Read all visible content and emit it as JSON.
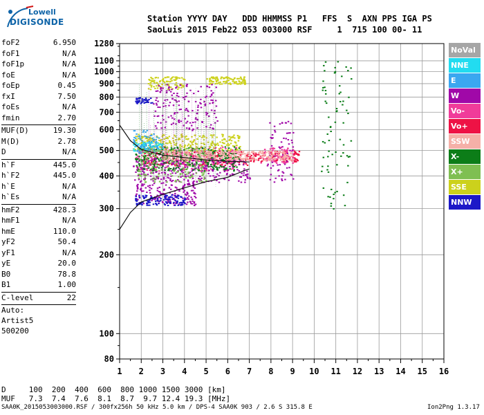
{
  "logo": {
    "line1": "Lowell",
    "line2": "DIGISONDE"
  },
  "header": {
    "line1": "Station YYYY DAY   DDD HHMMSS P1   FFS  S  AXN PPS IGA PS",
    "line2": "SaoLuis 2015 Feb22 053 003000 RSF     1  715 100 00- 11"
  },
  "params": [
    {
      "name": "foF2",
      "value": "6.950"
    },
    {
      "name": "foF1",
      "value": "N/A"
    },
    {
      "name": "foF1p",
      "value": "N/A"
    },
    {
      "name": "foE",
      "value": "N/A"
    },
    {
      "name": "foEp",
      "value": "0.45"
    },
    {
      "name": "fxI",
      "value": "7.50"
    },
    {
      "name": "foEs",
      "value": "N/A"
    },
    {
      "name": "fmin",
      "value": "2.70"
    },
    {
      "sep": true
    },
    {
      "name": "MUF(D)",
      "value": "19.30"
    },
    {
      "name": "M(D)",
      "value": "2.78"
    },
    {
      "name": "D",
      "value": "N/A"
    },
    {
      "sep": true
    },
    {
      "name": "h`F",
      "value": "445.0"
    },
    {
      "name": "h`F2",
      "value": "445.0"
    },
    {
      "name": "h`E",
      "value": "N/A"
    },
    {
      "name": "h`Es",
      "value": "N/A"
    },
    {
      "sep": true
    },
    {
      "name": "hmF2",
      "value": "428.3"
    },
    {
      "name": "hmF1",
      "value": "N/A"
    },
    {
      "name": "hmE",
      "value": "110.0"
    },
    {
      "name": "yF2",
      "value": "50.4"
    },
    {
      "name": "yF1",
      "value": "N/A"
    },
    {
      "name": "yE",
      "value": "20.0"
    },
    {
      "name": "B0",
      "value": "78.8"
    },
    {
      "name": "B1",
      "value": "1.00"
    },
    {
      "sep": true
    },
    {
      "name": "C-level",
      "value": "22"
    },
    {
      "sep": true
    },
    {
      "text": "Auto:"
    },
    {
      "text": "Artist5"
    },
    {
      "text": "500200"
    }
  ],
  "legend": [
    {
      "label": "NoVal",
      "color": "#a6a6a6"
    },
    {
      "label": "NNE",
      "color": "#22dcf0"
    },
    {
      "label": "E",
      "color": "#3aa7f0"
    },
    {
      "label": "W",
      "color": "#a008a8"
    },
    {
      "label": "Vo-",
      "color": "#f03c9a"
    },
    {
      "label": "Vo+",
      "color": "#ee1245"
    },
    {
      "label": "SSW",
      "color": "#f5b0a8"
    },
    {
      "label": "X-",
      "color": "#0c7d18"
    },
    {
      "label": "X+",
      "color": "#7fbf52"
    },
    {
      "label": "SSE",
      "color": "#ccd11c"
    },
    {
      "label": "NNW",
      "color": "#1c18c8"
    }
  ],
  "bottom": {
    "line1": "D     100  200  400  600  800 1000 1500 3000 [km]",
    "line2": "MUF   7.3  7.4  7.6  8.1  8.7  9.7 12.4 19.3 [MHz]"
  },
  "footer": {
    "left": "SAA0K_2015053003000.RSF / 300fx256h 50 kHz 5.0 km / DPS-4 SAA0K 903 / 2.6 S 315.8 E",
    "right": "Ion2Png 1.3.17"
  },
  "chart_data": {
    "type": "scatter",
    "title": "",
    "xlabel": "",
    "ylabel": "",
    "xlim": [
      1,
      16
    ],
    "ylim": [
      80,
      1280
    ],
    "y_scale": "log",
    "x_ticks": [
      "1",
      "2",
      "3",
      "4",
      "5",
      "6",
      "7",
      "8",
      "9",
      "10",
      "11",
      "12",
      "13",
      "14",
      "15",
      "16"
    ],
    "y_ticks": [
      "80",
      "100",
      "200",
      "300",
      "400",
      "500",
      "600",
      "700",
      "800",
      "900",
      "1000",
      "1100",
      "1280"
    ],
    "grid": true,
    "series": [
      {
        "name": "Vo+",
        "color": "#ee1245",
        "clusters": [
          {
            "x": [
              2.0,
              7.0
            ],
            "y": [
              440,
              500
            ]
          },
          {
            "x": [
              7.0,
              9.3
            ],
            "y": [
              455,
              500
            ]
          }
        ]
      },
      {
        "name": "Vo-",
        "color": "#f03c9a",
        "clusters": [
          {
            "x": [
              1.7,
              6.5
            ],
            "y": [
              420,
              520
            ]
          },
          {
            "x": [
              7.5,
              9.0
            ],
            "y": [
              450,
              520
            ]
          }
        ]
      },
      {
        "name": "SSE",
        "color": "#ccd11c",
        "clusters": [
          {
            "x": [
              1.6,
              6.6
            ],
            "y": [
              500,
              580
            ]
          },
          {
            "x": [
              2.3,
              4.0
            ],
            "y": [
              860,
              960
            ]
          },
          {
            "x": [
              5.0,
              6.8
            ],
            "y": [
              900,
              960
            ]
          }
        ]
      },
      {
        "name": "W",
        "color": "#a008a8",
        "clusters": [
          {
            "x": [
              1.7,
              4.5
            ],
            "y": [
              310,
              380
            ]
          },
          {
            "x": [
              1.6,
              7.0
            ],
            "y": [
              380,
              470
            ]
          },
          {
            "x": [
              7.8,
              9.0
            ],
            "y": [
              380,
              650
            ]
          },
          {
            "x": [
              2.5,
              5.5
            ],
            "y": [
              600,
              900
            ]
          }
        ]
      },
      {
        "name": "NNW",
        "color": "#1c18c8",
        "clusters": [
          {
            "x": [
              1.7,
              2.5
            ],
            "y": [
              760,
              800
            ]
          },
          {
            "x": [
              1.7,
              4.0
            ],
            "y": [
              310,
              340
            ]
          }
        ]
      },
      {
        "name": "X-",
        "color": "#0c7d18",
        "clusters": [
          {
            "x": [
              1.7,
              6.5
            ],
            "y": [
              420,
              520
            ]
          },
          {
            "x": [
              10.3,
              11.7
            ],
            "y": [
              300,
              1100
            ]
          }
        ]
      },
      {
        "name": "NNE",
        "color": "#22dcf0",
        "clusters": [
          {
            "x": [
              1.6,
              3.0
            ],
            "y": [
              500,
              540
            ]
          }
        ]
      },
      {
        "name": "E",
        "color": "#3aa7f0",
        "clusters": [
          {
            "x": [
              1.6,
              2.8
            ],
            "y": [
              490,
              600
            ]
          }
        ]
      },
      {
        "name": "SSW",
        "color": "#f5b0a8",
        "clusters": [
          {
            "x": [
              3.0,
              9.0
            ],
            "y": [
              460,
              500
            ]
          }
        ]
      },
      {
        "name": "X+",
        "color": "#7fbf52",
        "clusters": [
          {
            "x": [
              1.8,
              5.0
            ],
            "y": [
              380,
              520
            ]
          }
        ]
      }
    ],
    "profile_lines": [
      {
        "name": "",
        "color": "#111111",
        "points": [
          [
            1,
            250
          ],
          [
            1.5,
            290
          ],
          [
            2,
            318
          ],
          [
            3,
            340
          ],
          [
            4,
            360
          ],
          [
            5,
            380
          ],
          [
            6,
            395
          ],
          [
            6.8,
            420
          ],
          [
            7.0,
            425
          ]
        ]
      },
      {
        "name": "",
        "color": "#111111",
        "points": [
          [
            1,
            625
          ],
          [
            1.5,
            545
          ],
          [
            2,
            505
          ],
          [
            3,
            480
          ],
          [
            4,
            470
          ],
          [
            5,
            460
          ],
          [
            6,
            455
          ],
          [
            7,
            452
          ]
        ]
      }
    ]
  }
}
